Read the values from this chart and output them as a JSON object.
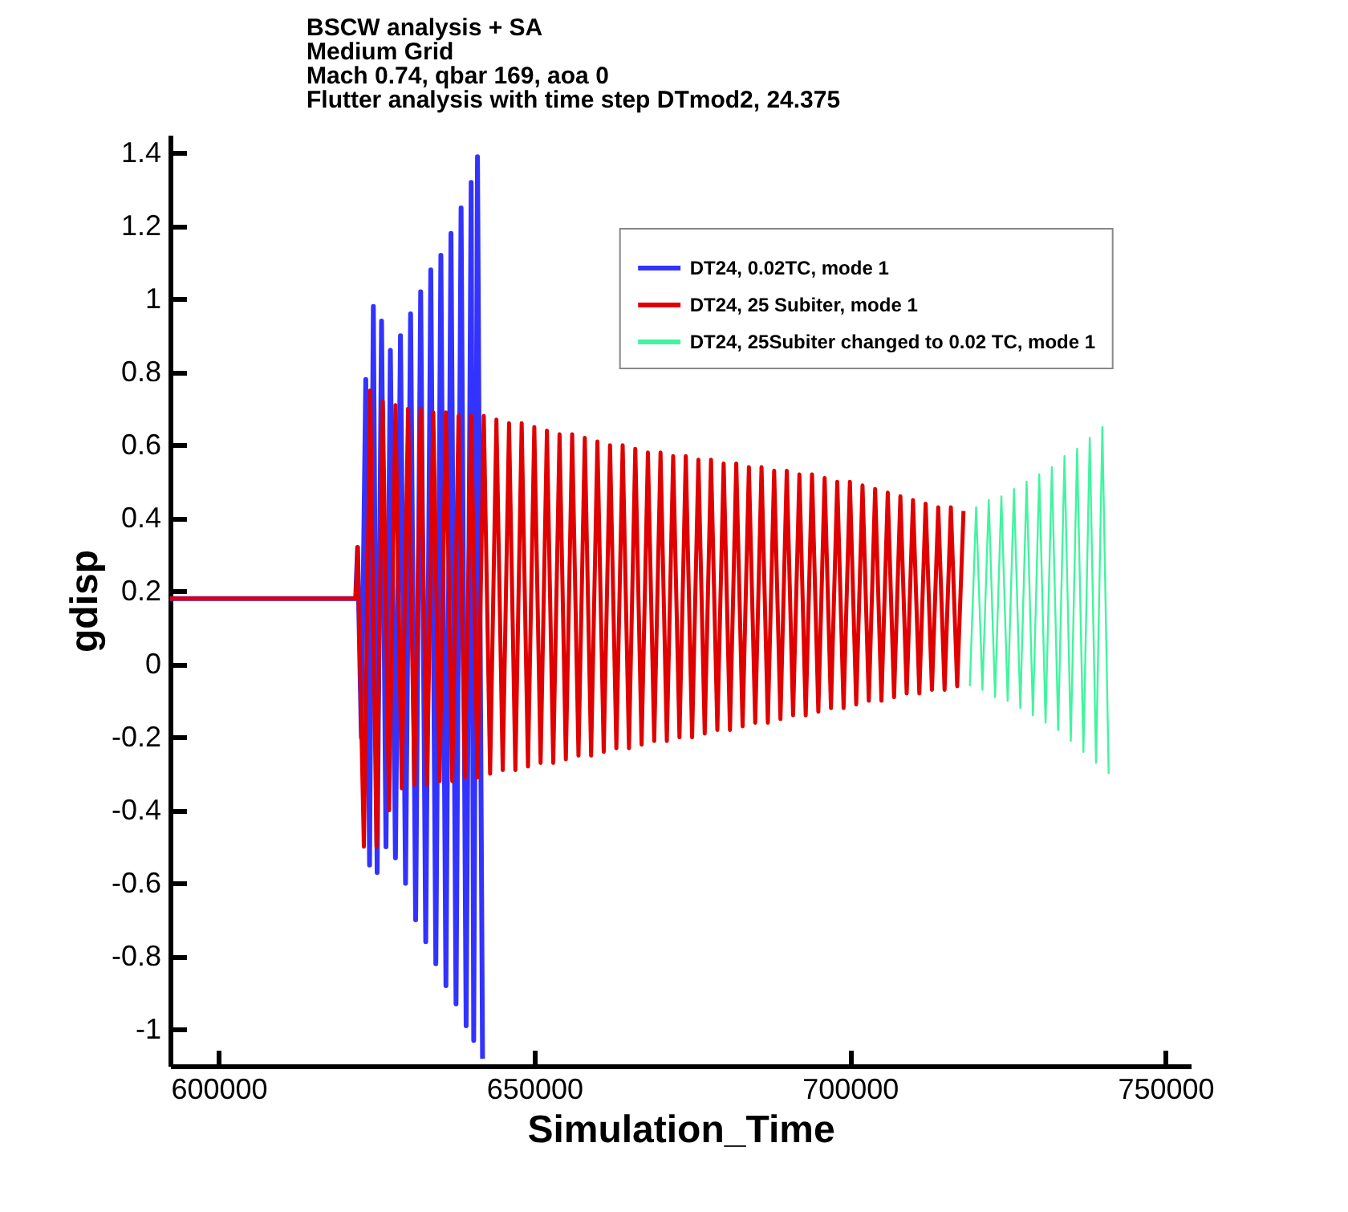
{
  "chart_data": {
    "type": "line",
    "title": "BSCW analysis + SA\nMedium Grid\nMach 0.74, qbar 169, aoa 0\nFlutter analysis with time step DTmod2, 24.375",
    "xlabel": "Simulation_Time",
    "ylabel": "gdisp",
    "xlim": [
      592300,
      754000
    ],
    "ylim": [
      -1.1,
      1.45
    ],
    "xticks": [
      600000,
      650000,
      700000,
      750000
    ],
    "yticks": [
      -1,
      -0.8,
      -0.6,
      -0.4,
      -0.2,
      0,
      0.2,
      0.4,
      0.6,
      0.8,
      1,
      1.2,
      1.4
    ],
    "grid": false,
    "legend": "top right",
    "line_style": "solid",
    "series": [
      {
        "name": "DT24, 0.02TC, mode 1",
        "color": "#3333ff",
        "x": [
          592300,
          621700,
          622000,
          622600,
          623300,
          623900,
          624500,
          625100,
          625800,
          626500,
          627200,
          628000,
          628800,
          629600,
          630400,
          631200,
          632000,
          632800,
          633600,
          634400,
          635200,
          636000,
          636800,
          637600,
          638400,
          639200,
          640000,
          640400,
          641000,
          641800
        ],
        "values": [
          0.18,
          0.18,
          0.32,
          -0.2,
          0.78,
          -0.55,
          0.98,
          -0.57,
          0.94,
          -0.5,
          0.86,
          -0.53,
          0.9,
          -0.6,
          0.96,
          -0.7,
          1.02,
          -0.76,
          1.08,
          -0.82,
          1.12,
          -0.88,
          1.18,
          -0.93,
          1.25,
          -0.99,
          1.32,
          -1.03,
          1.39,
          -1.08
        ]
      },
      {
        "name": "DT24, 25 Subiter, mode 1",
        "color": "#e00000",
        "x": [
          592300,
          621700,
          622000,
          623000,
          624000,
          625000,
          626000,
          627000,
          628000,
          629000,
          630000,
          631000,
          632000,
          633000,
          634000,
          635000,
          636000,
          637000,
          638000,
          639000,
          640000,
          641000,
          642000,
          643000,
          644000,
          645000,
          646000,
          647000,
          648000,
          649000,
          650000,
          651000,
          652000,
          653000,
          654000,
          655000,
          656000,
          657000,
          658000,
          659000,
          660000,
          661000,
          662000,
          663000,
          664000,
          665000,
          666000,
          667000,
          668000,
          669000,
          670000,
          671000,
          672000,
          673000,
          674000,
          675000,
          676000,
          677000,
          678000,
          679000,
          680000,
          681000,
          682000,
          683000,
          684000,
          685000,
          686000,
          687000,
          688000,
          689000,
          690000,
          691000,
          692000,
          693000,
          694000,
          695000,
          696000,
          697000,
          698000,
          699000,
          700000,
          701000,
          702000,
          703000,
          704000,
          705000,
          706000,
          707000,
          708000,
          709000,
          710000,
          711000,
          712000,
          713000,
          714000,
          715000,
          716000,
          717000,
          718000
        ],
        "values": [
          0.18,
          0.18,
          0.32,
          -0.5,
          0.75,
          -0.5,
          0.72,
          -0.4,
          0.71,
          -0.34,
          0.7,
          -0.33,
          0.7,
          -0.33,
          0.69,
          -0.32,
          0.69,
          -0.32,
          0.68,
          -0.31,
          0.68,
          -0.31,
          0.68,
          -0.3,
          0.67,
          -0.29,
          0.66,
          -0.29,
          0.66,
          -0.28,
          0.65,
          -0.27,
          0.64,
          -0.27,
          0.63,
          -0.26,
          0.63,
          -0.25,
          0.62,
          -0.25,
          0.61,
          -0.24,
          0.6,
          -0.23,
          0.6,
          -0.23,
          0.59,
          -0.22,
          0.58,
          -0.21,
          0.58,
          -0.21,
          0.57,
          -0.2,
          0.57,
          -0.2,
          0.56,
          -0.19,
          0.56,
          -0.18,
          0.55,
          -0.18,
          0.55,
          -0.17,
          0.54,
          -0.16,
          0.54,
          -0.16,
          0.53,
          -0.15,
          0.53,
          -0.14,
          0.52,
          -0.14,
          0.52,
          -0.13,
          0.51,
          -0.12,
          0.5,
          -0.12,
          0.5,
          -0.11,
          0.49,
          -0.1,
          0.48,
          -0.1,
          0.47,
          -0.09,
          0.46,
          -0.08,
          0.45,
          -0.08,
          0.44,
          -0.07,
          0.43,
          -0.07,
          0.43,
          -0.06,
          0.42
        ]
      },
      {
        "name": "DT24, 25Subiter changed to 0.02 TC, mode 1",
        "color": "#40f5a0",
        "x": [
          719000,
          720000,
          721000,
          722000,
          723000,
          724000,
          725000,
          726000,
          727000,
          728000,
          729000,
          730000,
          731000,
          732000,
          733000,
          734000,
          735000,
          736000,
          737000,
          738000,
          739000,
          740000,
          741000
        ],
        "values": [
          -0.06,
          0.43,
          -0.07,
          0.45,
          -0.09,
          0.46,
          -0.1,
          0.48,
          -0.12,
          0.5,
          -0.14,
          0.52,
          -0.16,
          0.54,
          -0.18,
          0.57,
          -0.21,
          0.59,
          -0.24,
          0.62,
          -0.27,
          0.65,
          -0.3
        ]
      }
    ]
  }
}
